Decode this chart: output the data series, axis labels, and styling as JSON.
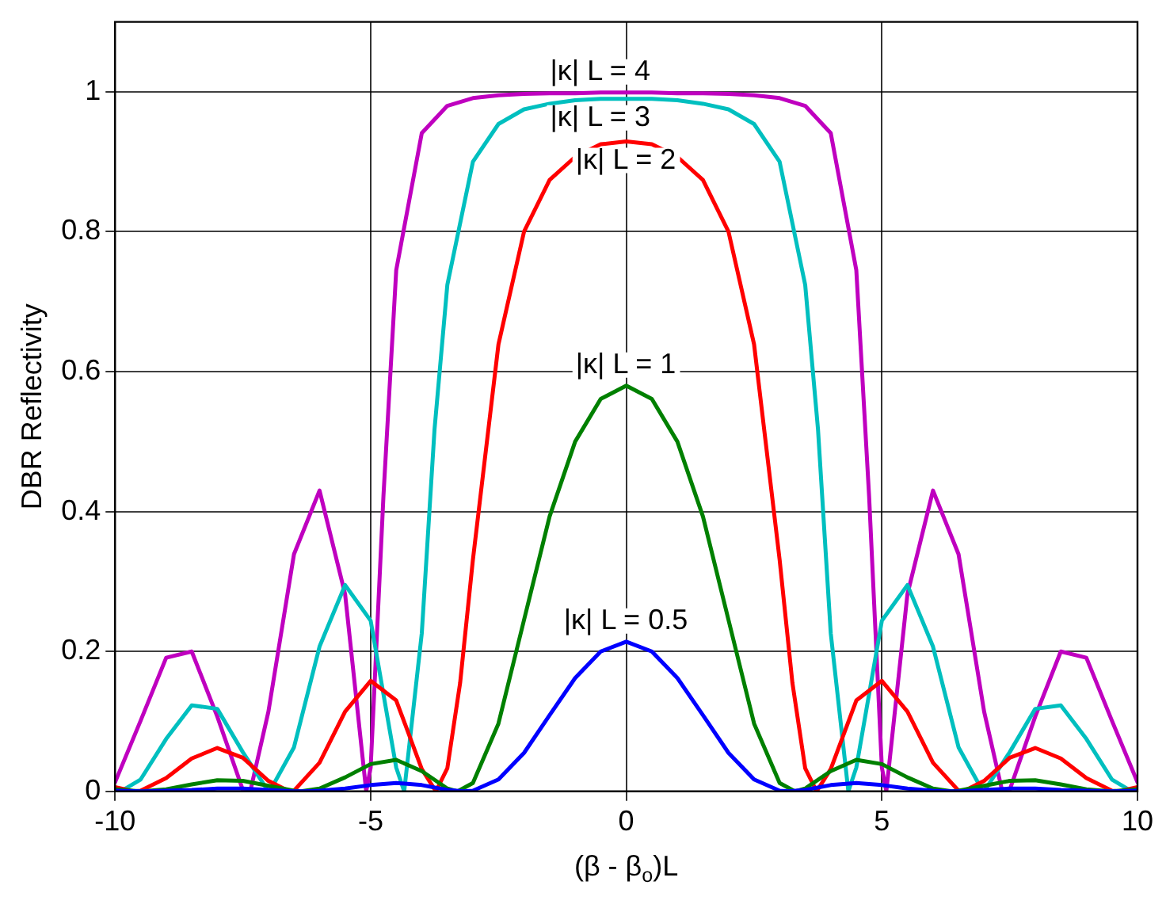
{
  "chart_data": {
    "type": "line",
    "xlabel": "(β - β$_{o}$)L",
    "ylabel": "DBR Reflectivity",
    "xlim": [
      -10,
      10
    ],
    "xticks": [
      -10,
      -5,
      0,
      5,
      10
    ],
    "ylim": [
      0,
      1.1
    ],
    "yticks": [
      0,
      0.2,
      0.4,
      0.6,
      0.8,
      1
    ],
    "grid": true,
    "legend": false,
    "series": [
      {
        "name": "|κ| L = 0.5",
        "color": "#0000ff",
        "x": [
          -10,
          -9.5,
          -9.438,
          -9,
          -8.5,
          -8,
          -7.5,
          -7,
          -6.5,
          -6.303,
          -6,
          -5.5,
          -5,
          -4.5,
          -4,
          -3.5,
          -3.181,
          -3,
          -2.5,
          -2,
          -1.5,
          -1,
          -0.5,
          0,
          0.5,
          1,
          1.5,
          2,
          2.5,
          3,
          3.181,
          3.5,
          4,
          4.5,
          5,
          5.5,
          6,
          6.303,
          6.5,
          7,
          7.5,
          8,
          8.5,
          9,
          9.438,
          9.5,
          10
        ],
        "values": [
          0.001,
          0,
          0,
          0.001,
          0.002,
          0.004,
          0.004,
          0.002,
          0,
          0,
          0.001,
          0.004,
          0.009,
          0.012,
          0.009,
          0.002,
          0,
          0.001,
          0.017,
          0.055,
          0.109,
          0.162,
          0.2,
          0.214,
          0.2,
          0.162,
          0.109,
          0.055,
          0.017,
          0.001,
          0,
          0.002,
          0.009,
          0.012,
          0.009,
          0.004,
          0.001,
          0,
          0,
          0.002,
          0.004,
          0.004,
          0.002,
          0.001,
          0,
          0,
          0.001
        ]
      },
      {
        "name": "|κ| L = 1",
        "color": "#008000",
        "x": [
          -10,
          -9.5,
          -9.478,
          -9,
          -8.5,
          -8,
          -7.5,
          -7,
          -6.5,
          -6.362,
          -6,
          -5.5,
          -5,
          -4.5,
          -4,
          -3.5,
          -3.297,
          -3,
          -2.5,
          -2,
          -1.5,
          -1,
          -0.5,
          0,
          0.5,
          1,
          1.5,
          2,
          2.5,
          3,
          3.297,
          3.5,
          4,
          4.5,
          5,
          5.5,
          6,
          6.362,
          6.5,
          7,
          7.5,
          8,
          8.5,
          9,
          9.478,
          9.5,
          10
        ],
        "values": [
          0.003,
          0,
          0,
          0.003,
          0.01,
          0.016,
          0.015,
          0.008,
          0.001,
          0,
          0.004,
          0.02,
          0.039,
          0.045,
          0.029,
          0.004,
          0,
          0.012,
          0.097,
          0.245,
          0.393,
          0.5,
          0.561,
          0.58,
          0.561,
          0.5,
          0.393,
          0.245,
          0.097,
          0.012,
          0,
          0.004,
          0.029,
          0.045,
          0.039,
          0.02,
          0.004,
          0,
          0.001,
          0.008,
          0.015,
          0.016,
          0.01,
          0.003,
          0,
          0,
          0.003
        ]
      },
      {
        "name": "|κ| L = 2",
        "color": "#ff0000",
        "x": [
          -10,
          -9.636,
          -9.5,
          -9,
          -8.5,
          -8,
          -7.5,
          -7,
          -6.594,
          -6.5,
          -6,
          -5.5,
          -5,
          -4.5,
          -4,
          -3.724,
          -3.5,
          -3.25,
          -3,
          -2.5,
          -2,
          -1.5,
          -1,
          -0.5,
          0,
          0.5,
          1,
          1.5,
          2,
          2.5,
          3,
          3.25,
          3.5,
          3.724,
          4,
          4.5,
          5,
          5.5,
          6,
          6.5,
          6.594,
          7,
          7.5,
          8,
          8.5,
          9,
          9.5,
          9.636,
          10
        ],
        "values": [
          0.006,
          0,
          0.001,
          0.019,
          0.047,
          0.062,
          0.048,
          0.015,
          0,
          0.001,
          0.041,
          0.114,
          0.158,
          0.13,
          0.032,
          0,
          0.033,
          0.155,
          0.331,
          0.639,
          0.8,
          0.874,
          0.907,
          0.925,
          0.929,
          0.925,
          0.907,
          0.874,
          0.8,
          0.639,
          0.331,
          0.155,
          0.033,
          0,
          0.032,
          0.13,
          0.158,
          0.114,
          0.041,
          0.001,
          0,
          0.015,
          0.048,
          0.062,
          0.047,
          0.019,
          0.001,
          0,
          0.006
        ]
      },
      {
        "name": "|κ| L = 3",
        "color": "#00bfbf",
        "x": [
          -10,
          -9.889,
          -9.5,
          -9,
          -8.5,
          -8,
          -7.5,
          -7,
          -6.975,
          -6.5,
          -6,
          -5.5,
          -5,
          -4.5,
          -4.344,
          -4,
          -3.75,
          -3.5,
          -3,
          -2.5,
          -2,
          -1.5,
          -1,
          -0.5,
          0,
          0.5,
          1,
          1.5,
          2,
          2.5,
          3,
          3.5,
          3.75,
          4,
          4.344,
          4.5,
          5,
          5.5,
          6,
          6.5,
          6.975,
          7,
          7.5,
          8,
          8.5,
          9,
          9.5,
          9.889,
          10
        ],
        "values": [
          0.001,
          0,
          0.017,
          0.075,
          0.123,
          0.118,
          0.056,
          0,
          0,
          0.063,
          0.207,
          0.295,
          0.244,
          0.034,
          0,
          0.226,
          0.518,
          0.724,
          0.9,
          0.954,
          0.975,
          0.983,
          0.988,
          0.99,
          0.99,
          0.99,
          0.988,
          0.983,
          0.975,
          0.954,
          0.9,
          0.724,
          0.518,
          0.226,
          0,
          0.034,
          0.244,
          0.295,
          0.207,
          0.063,
          0,
          0,
          0.056,
          0.118,
          0.123,
          0.075,
          0.017,
          0,
          0.001
        ]
      },
      {
        "name": "|κ| L = 4",
        "color": "#bf00bf",
        "x": [
          -10,
          -9.5,
          -9,
          -8.5,
          -8,
          -7.5,
          -7.355,
          -7,
          -6.5,
          -6,
          -5.5,
          -5.087,
          -5,
          -4.75,
          -4.5,
          -4,
          -3.5,
          -3,
          -2.5,
          -2,
          -1.5,
          -1,
          -0.5,
          0,
          0.5,
          1,
          1.5,
          2,
          2.5,
          3,
          3.5,
          4,
          4.5,
          4.75,
          5,
          5.087,
          5.5,
          6,
          6.5,
          7,
          7.355,
          7.5,
          8,
          8.5,
          9,
          9.5,
          10
        ],
        "values": [
          0.013,
          0.101,
          0.191,
          0.2,
          0.107,
          0.002,
          0,
          0.114,
          0.339,
          0.43,
          0.282,
          0,
          0.034,
          0.422,
          0.745,
          0.941,
          0.98,
          0.991,
          0.995,
          0.997,
          0.998,
          0.998,
          0.999,
          0.999,
          0.999,
          0.998,
          0.998,
          0.997,
          0.995,
          0.991,
          0.98,
          0.941,
          0.745,
          0.422,
          0.034,
          0,
          0.282,
          0.43,
          0.339,
          0.114,
          0,
          0.002,
          0.107,
          0.2,
          0.191,
          0.101,
          0.013
        ]
      }
    ]
  }
}
